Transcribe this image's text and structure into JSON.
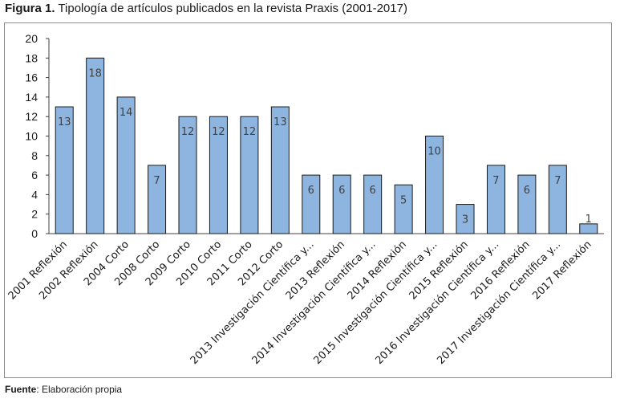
{
  "figure": {
    "label": "Figura 1.",
    "title": "Tipología de artículos publicados en la revista Praxis (2001-2017)"
  },
  "source": {
    "label": "Fuente",
    "text": ": Elaboración propia"
  },
  "chart_data": {
    "type": "bar",
    "categories": [
      "2001 Reflexión",
      "2002 Reflexión",
      "2004 Corto",
      "2008 Corto",
      "2009 Corto",
      "2010 Corto",
      "2011 Corto",
      "2012 Corto",
      "2013 Investigación Científica y...",
      "2013 Reflexión",
      "2014 Investigación Científica y...",
      "2014 Reflexión",
      "2015 Investigación Científica y...",
      "2015  Reflexión",
      "2016  Investigación Científica y...",
      "2016  Reflexión",
      "2017  Investigación Científica y...",
      "2017  Reflexión"
    ],
    "values": [
      13,
      18,
      14,
      7,
      12,
      12,
      12,
      13,
      6,
      6,
      6,
      5,
      10,
      3,
      7,
      6,
      7,
      1
    ],
    "ylim": [
      0,
      20
    ],
    "yticks": [
      0,
      2,
      4,
      6,
      8,
      10,
      12,
      14,
      16,
      18,
      20
    ],
    "grid": false,
    "legend": "none",
    "bar_color": "#8db5e0",
    "bar_stroke": "#1a1a1a"
  }
}
